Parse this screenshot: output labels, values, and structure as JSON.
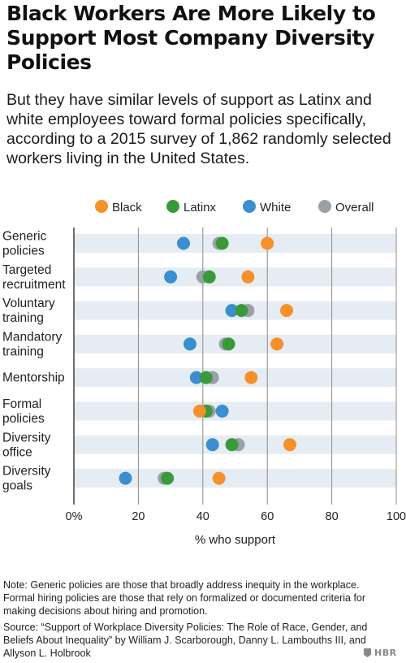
{
  "title": "Black Workers Are More Likely to Support Most Company Diversity Policies",
  "subtitle": "But they have similar levels of support as Latinx and white employees toward formal policies specifically, according to a 2015 survey of 1,862 randomly selected workers living in the United States.",
  "note": "Note: Generic policies are those that broadly address inequity in the workplace. Formal hiring policies are those that rely on formalized or documented criteria for making decisions about hiring and promotion.",
  "source": "Source: “Support of Workplace Diversity Policies: The Role of Race, Gender, and Beliefs About Inequality” by William J. Scarborough, Danny L. Lambouths III, and Allyson L. Holbrook",
  "logo": "HBR",
  "chart_data": {
    "type": "scatter",
    "xlabel": "% who support",
    "xlim": [
      0,
      100
    ],
    "xticks": [
      0,
      20,
      40,
      60,
      80,
      100
    ],
    "xtick_labels": [
      "0%",
      "20",
      "40",
      "60",
      "80",
      "100"
    ],
    "grid": true,
    "legend_position": "top",
    "categories": [
      "Generic\npolicies",
      "Targeted\nrecruitment",
      "Voluntary\ntraining",
      "Mandatory\ntraining",
      "Mentorship",
      "Formal\npolicies",
      "Diversity\noffice",
      "Diversity\ngoals"
    ],
    "series": [
      {
        "name": "Overall",
        "color": "#9aa0a6",
        "values": [
          45,
          40,
          54,
          47,
          43,
          42,
          51,
          28
        ]
      },
      {
        "name": "White",
        "color": "#3a8fd0",
        "values": [
          34,
          30,
          49,
          36,
          38,
          46,
          43,
          16
        ]
      },
      {
        "name": "Latinx",
        "color": "#3a9a3a",
        "values": [
          46,
          42,
          52,
          48,
          41,
          41,
          49,
          29
        ]
      },
      {
        "name": "Black",
        "color": "#f5912a",
        "values": [
          60,
          54,
          66,
          63,
          55,
          39,
          67,
          45
        ]
      }
    ],
    "legend_order": [
      "Black",
      "Latinx",
      "White",
      "Overall"
    ]
  }
}
